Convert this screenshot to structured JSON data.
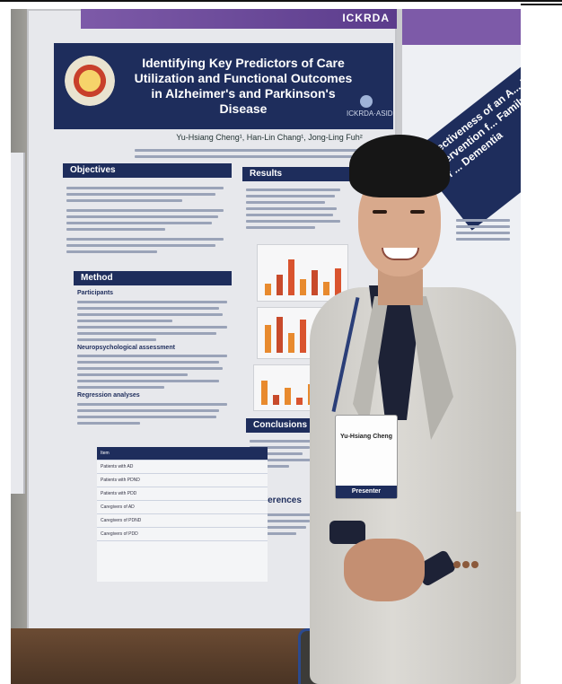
{
  "poster": {
    "top_band_logo": "ICKRDA",
    "title": "Identifying Key Predictors of Care Utilization and Functional Outcomes in Alzheimer's and Parkinson's Disease",
    "right_logo": "ICKRDA·ASID",
    "authors": "Yu-Hsiang Cheng¹, Han-Lin Chang¹, Jong-Ling Fuh²",
    "sections": {
      "objectives": "Objectives",
      "results": "Results",
      "method": "Method",
      "conclusions": "Conclusions",
      "references": "References"
    },
    "method_subheads": {
      "participants": "Participants",
      "neuro": "Neuropsychological assessment",
      "regression": "Regression analyses"
    },
    "table_rows": [
      "Item",
      "Patients with AD",
      "Patients with PDND",
      "Patients with PDD",
      "Caregivers of AD",
      "Caregivers of PDND",
      "Caregivers of PDD"
    ]
  },
  "poster2": {
    "title": "Effectiveness of an A... Planning Intervention f... Family Caregivers of ... Dementia"
  },
  "badge": {
    "name": "Yu-Hsiang Cheng",
    "role": "Presenter"
  },
  "chart_bars": [
    {
      "h": 0.25,
      "c": "#e88a2e"
    },
    {
      "h": 0.45,
      "c": "#c84a2b"
    },
    {
      "h": 0.8,
      "c": "#d9532e"
    },
    {
      "h": 0.35,
      "c": "#e88a2e"
    },
    {
      "h": 0.55,
      "c": "#c84a2b"
    },
    {
      "h": 0.3,
      "c": "#e88a2e"
    },
    {
      "h": 0.6,
      "c": "#d9532e"
    }
  ],
  "chart_bars2": [
    {
      "h": 0.7,
      "c": "#e88a2e"
    },
    {
      "h": 0.9,
      "c": "#c84a2b"
    },
    {
      "h": 0.5,
      "c": "#e88a2e"
    },
    {
      "h": 0.85,
      "c": "#d9532e"
    },
    {
      "h": 0.4,
      "c": "#e88a2e"
    },
    {
      "h": 0.9,
      "c": "#c84a2b"
    },
    {
      "h": 0.6,
      "c": "#d9532e"
    }
  ],
  "chart_bars3": [
    {
      "h": 0.7,
      "c": "#e88a2e"
    },
    {
      "h": 0.3,
      "c": "#c84a2b"
    },
    {
      "h": 0.5,
      "c": "#e88a2e"
    },
    {
      "h": 0.2,
      "c": "#d9532e"
    },
    {
      "h": 0.6,
      "c": "#e88a2e"
    },
    {
      "h": 0.35,
      "c": "#c84a2b"
    },
    {
      "h": 0.45,
      "c": "#d9532e"
    }
  ]
}
